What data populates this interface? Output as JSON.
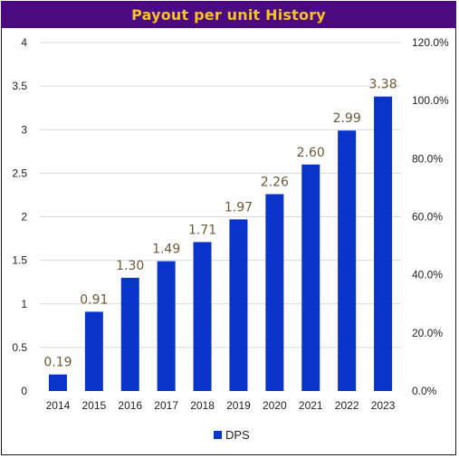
{
  "chart_data": {
    "type": "bar",
    "title": "Payout per unit History",
    "categories": [
      "2014",
      "2015",
      "2016",
      "2017",
      "2018",
      "2019",
      "2020",
      "2021",
      "2022",
      "2023"
    ],
    "series": [
      {
        "name": "DPS",
        "values": [
          0.19,
          0.91,
          1.3,
          1.49,
          1.71,
          1.97,
          2.26,
          2.6,
          2.99,
          3.38
        ],
        "labels": [
          "0.19",
          "0.91",
          "1.30",
          "1.49",
          "1.71",
          "1.97",
          "2.26",
          "2.60",
          "2.99",
          "3.38"
        ],
        "color": "#0a33cc"
      }
    ],
    "ylim": [
      0,
      4
    ],
    "y_ticks": [
      "0",
      "0.5",
      "1",
      "1.5",
      "2",
      "2.5",
      "3",
      "3.5",
      "4"
    ],
    "y2lim": [
      0,
      120
    ],
    "y2_ticks": [
      "0.0%",
      "20.0%",
      "40.0%",
      "60.0%",
      "80.0%",
      "100.0%",
      "120.0%"
    ],
    "grid": true,
    "legend": "bottom-center",
    "colors": {
      "title_background": "#4b0a80",
      "title_text": "#f6c224",
      "data_label": "#6b5a3a",
      "grid": "#d9d9d9"
    }
  }
}
